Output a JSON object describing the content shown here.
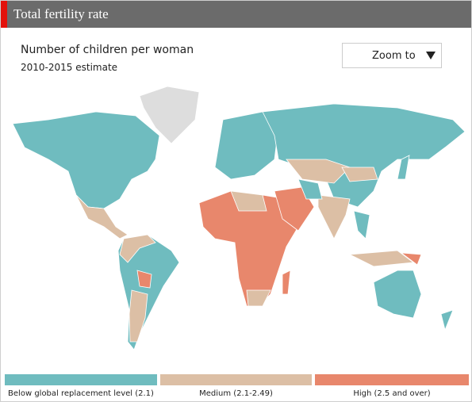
{
  "header": {
    "title": "Total fertility rate"
  },
  "subtitle": "Number of children per woman",
  "note": "2010-2015 estimate",
  "zoom": {
    "label": "Zoom to"
  },
  "no_data_color": "#dddddd",
  "legend": [
    {
      "label": "Below global replacement level (2.1)",
      "color": "#6fbcbf"
    },
    {
      "label": "Medium (2.1-2.49)",
      "color": "#dcbfa5"
    },
    {
      "label": "High (2.5 and over)",
      "color": "#e8876c"
    }
  ]
}
